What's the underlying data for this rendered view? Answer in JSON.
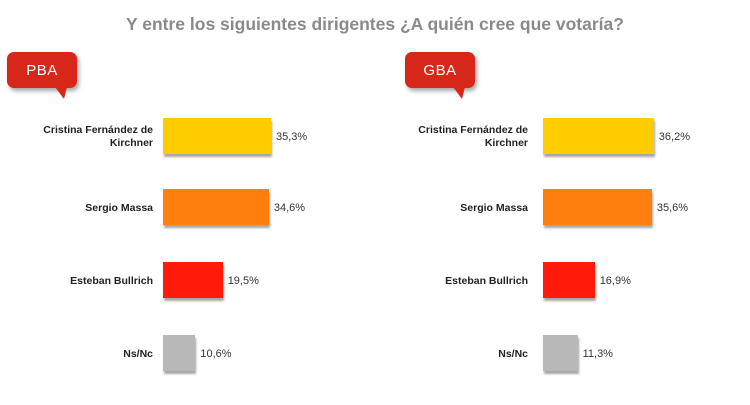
{
  "title": "Y entre los siguientes dirigentes ¿A quién cree que votaría?",
  "colors": {
    "badge": "#d7261a",
    "Cristina Fernández de Kirchner": "#ffcc00",
    "Sergio Massa": "#ff7f0e",
    "Esteban Bullrich": "#ff1a0a",
    "Ns/Nc": "#b8b8b8"
  },
  "chart_data": [
    {
      "type": "bar",
      "orientation": "horizontal",
      "title": "PBA",
      "categories": [
        "Cristina Fernández de Kirchner",
        "Sergio Massa",
        "Esteban Bullrich",
        "Ns/Nc"
      ],
      "values": [
        35.3,
        34.6,
        19.5,
        10.6
      ],
      "labels": [
        "35,3%",
        "34,6%",
        "19,5%",
        "10,6%"
      ],
      "unit": "%"
    },
    {
      "type": "bar",
      "orientation": "horizontal",
      "title": "GBA",
      "categories": [
        "Cristina Fernández de Kirchner",
        "Sergio Massa",
        "Esteban Bullrich",
        "Ns/Nc"
      ],
      "values": [
        36.2,
        35.6,
        16.9,
        11.3
      ],
      "labels": [
        "36,2%",
        "35,6%",
        "16,9%",
        "11,3%"
      ],
      "unit": "%"
    }
  ]
}
